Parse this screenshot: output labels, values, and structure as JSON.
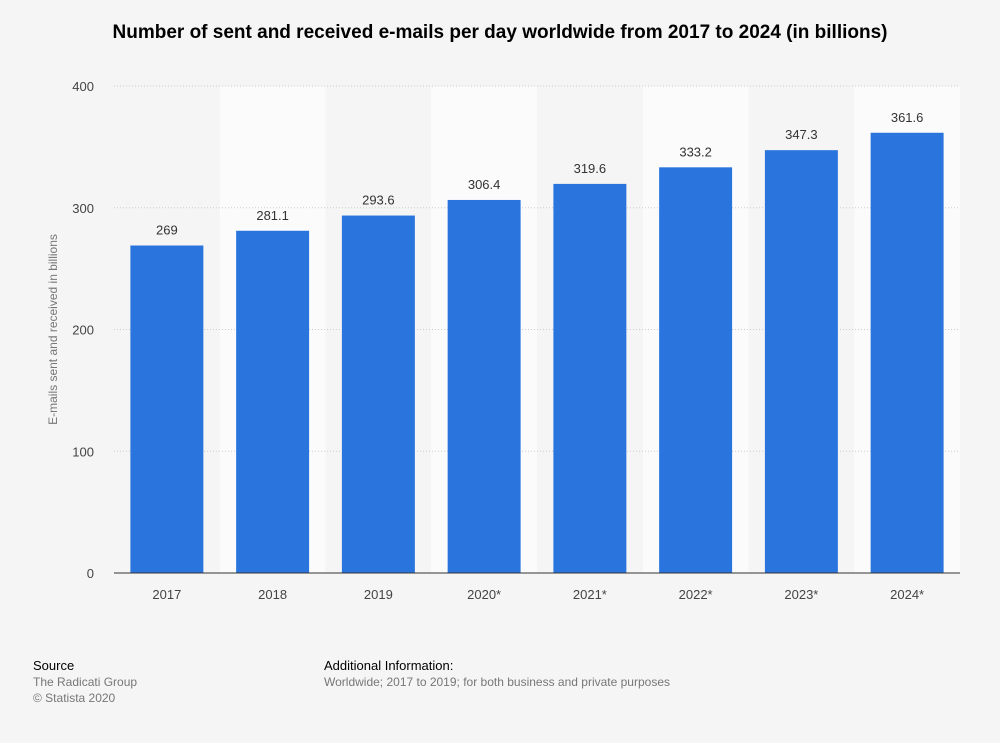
{
  "chart_data": {
    "type": "bar",
    "title": "Number of sent and received e-mails per day worldwide from 2017 to 2024 (in billions)",
    "xlabel": "",
    "ylabel": "E-mails sent and received in billions",
    "categories": [
      "2017",
      "2018",
      "2019",
      "2020*",
      "2021*",
      "2022*",
      "2023*",
      "2024*"
    ],
    "values": [
      269,
      281.1,
      293.6,
      306.4,
      319.6,
      333.2,
      347.3,
      361.6
    ],
    "value_labels": [
      "269",
      "281.1",
      "293.6",
      "306.4",
      "319.6",
      "333.2",
      "347.3",
      "361.6"
    ],
    "ylim": [
      0,
      400
    ],
    "yticks": [
      0,
      100,
      200,
      300,
      400
    ],
    "grid": true,
    "colors": {
      "bar": "#2a75dd",
      "band_light": "#fbfbfb",
      "band_dark": "#f5f5f5",
      "grid": "#cccccc"
    }
  },
  "footer": {
    "source_heading": "Source",
    "source_lines": [
      "The Radicati Group",
      "© Statista 2020"
    ],
    "info_heading": "Additional Information:",
    "info_text": "Worldwide; 2017 to 2019; for both business and private purposes"
  }
}
